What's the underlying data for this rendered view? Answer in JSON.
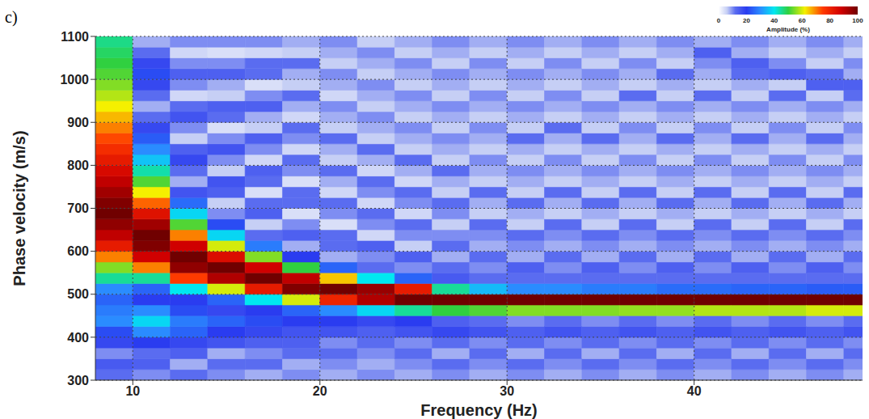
{
  "chart_data": {
    "type": "heatmap",
    "panel": "c)",
    "x_label": "Frequency (Hz)",
    "y_label": "Phase velocity (m/s)",
    "xlim": [
      8,
      49
    ],
    "xticks": [
      10,
      20,
      30,
      40
    ],
    "ylim": [
      300,
      1100
    ],
    "yticks": [
      300,
      400,
      500,
      600,
      700,
      800,
      900,
      1000,
      1100
    ],
    "grid": true,
    "x_edges": [
      8,
      10,
      12,
      14,
      16,
      18,
      20,
      22,
      24,
      26,
      28,
      30,
      32,
      34,
      36,
      38,
      40,
      42,
      44,
      46,
      48,
      49
    ],
    "y_edges": [
      300,
      325,
      350,
      375,
      400,
      425,
      450,
      475,
      500,
      525,
      550,
      575,
      600,
      625,
      650,
      675,
      700,
      725,
      750,
      775,
      800,
      825,
      850,
      875,
      900,
      925,
      950,
      975,
      1000,
      1025,
      1050,
      1075,
      1100
    ],
    "cells": [
      [
        12,
        15,
        10,
        18,
        22,
        30,
        28,
        25,
        30,
        45,
        55,
        70,
        82,
        90,
        96,
        100,
        98,
        94,
        90,
        86,
        82,
        78,
        74,
        70,
        66,
        62,
        58,
        55,
        52,
        50,
        48,
        46
      ],
      [
        10,
        14,
        12,
        20,
        30,
        38,
        30,
        20,
        25,
        45,
        70,
        88,
        98,
        100,
        94,
        84,
        72,
        62,
        52,
        44,
        36,
        30,
        24,
        18,
        12,
        8,
        12,
        18,
        22,
        18,
        12,
        8
      ],
      [
        12,
        8,
        14,
        18,
        25,
        28,
        22,
        20,
        40,
        75,
        96,
        100,
        88,
        70,
        52,
        38,
        26,
        16,
        8,
        12,
        18,
        14,
        6,
        10,
        16,
        12,
        5,
        10,
        14,
        10,
        5,
        10
      ],
      [
        10,
        12,
        8,
        16,
        20,
        25,
        18,
        25,
        60,
        92,
        100,
        85,
        60,
        38,
        22,
        10,
        6,
        14,
        16,
        6,
        10,
        16,
        10,
        4,
        12,
        14,
        6,
        8,
        14,
        10,
        4,
        10
      ],
      [
        8,
        12,
        10,
        14,
        18,
        22,
        20,
        40,
        82,
        100,
        88,
        55,
        28,
        12,
        6,
        14,
        12,
        4,
        12,
        14,
        5,
        10,
        14,
        6,
        8,
        14,
        10,
        4,
        12,
        12,
        5,
        10
      ],
      [
        10,
        8,
        12,
        14,
        16,
        20,
        25,
        60,
        98,
        90,
        50,
        20,
        8,
        14,
        10,
        4,
        12,
        12,
        4,
        10,
        12,
        5,
        10,
        12,
        5,
        8,
        12,
        6,
        8,
        12,
        6,
        8
      ],
      [
        8,
        10,
        12,
        10,
        16,
        20,
        30,
        80,
        100,
        65,
        25,
        8,
        12,
        12,
        4,
        10,
        12,
        5,
        8,
        12,
        6,
        8,
        12,
        6,
        8,
        10,
        5,
        8,
        10,
        6,
        8,
        10
      ],
      [
        10,
        8,
        10,
        12,
        14,
        18,
        38,
        92,
        95,
        40,
        12,
        10,
        14,
        5,
        10,
        12,
        5,
        10,
        12,
        5,
        8,
        12,
        6,
        8,
        10,
        6,
        8,
        10,
        6,
        8,
        10,
        6
      ],
      [
        8,
        10,
        12,
        10,
        16,
        20,
        45,
        100,
        82,
        25,
        10,
        14,
        6,
        10,
        12,
        5,
        10,
        12,
        5,
        8,
        12,
        6,
        8,
        10,
        6,
        8,
        10,
        6,
        8,
        10,
        6,
        8
      ],
      [
        10,
        12,
        8,
        12,
        18,
        14,
        50,
        100,
        45,
        15,
        12,
        8,
        12,
        10,
        6,
        10,
        12,
        6,
        8,
        12,
        6,
        8,
        10,
        6,
        8,
        10,
        6,
        8,
        10,
        6,
        8,
        10
      ],
      [
        8,
        10,
        12,
        10,
        16,
        12,
        52,
        100,
        35,
        12,
        10,
        12,
        8,
        10,
        12,
        6,
        8,
        12,
        6,
        8,
        10,
        6,
        8,
        10,
        6,
        8,
        10,
        6,
        8,
        10,
        6,
        8
      ],
      [
        10,
        12,
        8,
        12,
        14,
        10,
        55,
        100,
        30,
        12,
        14,
        8,
        10,
        12,
        6,
        8,
        12,
        6,
        8,
        10,
        6,
        8,
        12,
        6,
        8,
        10,
        6,
        8,
        10,
        6,
        8,
        10
      ],
      [
        8,
        10,
        12,
        10,
        16,
        12,
        55,
        100,
        30,
        12,
        10,
        12,
        8,
        10,
        12,
        6,
        8,
        12,
        6,
        8,
        10,
        6,
        8,
        12,
        6,
        8,
        10,
        6,
        8,
        10,
        6,
        8
      ],
      [
        10,
        12,
        8,
        12,
        14,
        10,
        55,
        100,
        28,
        12,
        14,
        8,
        10,
        12,
        6,
        8,
        12,
        6,
        8,
        10,
        6,
        8,
        12,
        6,
        8,
        10,
        6,
        8,
        10,
        6,
        8,
        10
      ],
      [
        8,
        10,
        12,
        10,
        16,
        12,
        56,
        100,
        28,
        12,
        10,
        12,
        8,
        10,
        12,
        6,
        8,
        12,
        6,
        8,
        10,
        6,
        8,
        10,
        6,
        8,
        12,
        6,
        8,
        10,
        6,
        8
      ],
      [
        10,
        12,
        8,
        12,
        14,
        10,
        56,
        100,
        26,
        12,
        14,
        8,
        10,
        12,
        6,
        8,
        12,
        6,
        8,
        10,
        6,
        8,
        12,
        6,
        8,
        10,
        6,
        8,
        12,
        6,
        8,
        10
      ],
      [
        8,
        10,
        12,
        10,
        16,
        12,
        58,
        100,
        26,
        12,
        10,
        12,
        8,
        10,
        12,
        6,
        8,
        12,
        6,
        8,
        10,
        6,
        8,
        10,
        6,
        8,
        12,
        6,
        8,
        10,
        14,
        8
      ],
      [
        10,
        12,
        8,
        12,
        14,
        10,
        58,
        100,
        25,
        12,
        14,
        8,
        10,
        12,
        6,
        8,
        12,
        6,
        8,
        10,
        6,
        8,
        12,
        6,
        8,
        10,
        6,
        8,
        12,
        14,
        8,
        10
      ],
      [
        8,
        10,
        12,
        10,
        16,
        12,
        58,
        100,
        25,
        12,
        10,
        12,
        8,
        10,
        12,
        6,
        8,
        12,
        6,
        8,
        10,
        6,
        8,
        10,
        6,
        8,
        12,
        6,
        14,
        10,
        6,
        8
      ],
      [
        10,
        12,
        8,
        12,
        14,
        10,
        60,
        100,
        24,
        12,
        14,
        8,
        10,
        12,
        6,
        8,
        12,
        6,
        8,
        10,
        6,
        8,
        12,
        6,
        8,
        10,
        6,
        14,
        12,
        6,
        8,
        10
      ],
      [
        8,
        10,
        12,
        10,
        16,
        12,
        60,
        100,
        24,
        12,
        10,
        12,
        8,
        10,
        12,
        6,
        8,
        12,
        6,
        8,
        10,
        6,
        8,
        10,
        6,
        8,
        12,
        14,
        8,
        10,
        6,
        8
      ]
    ],
    "colorbar": {
      "label": "Amplitude (%)",
      "range": [
        0,
        100
      ],
      "ticks": [
        0,
        20,
        40,
        60,
        80,
        100
      ]
    }
  }
}
